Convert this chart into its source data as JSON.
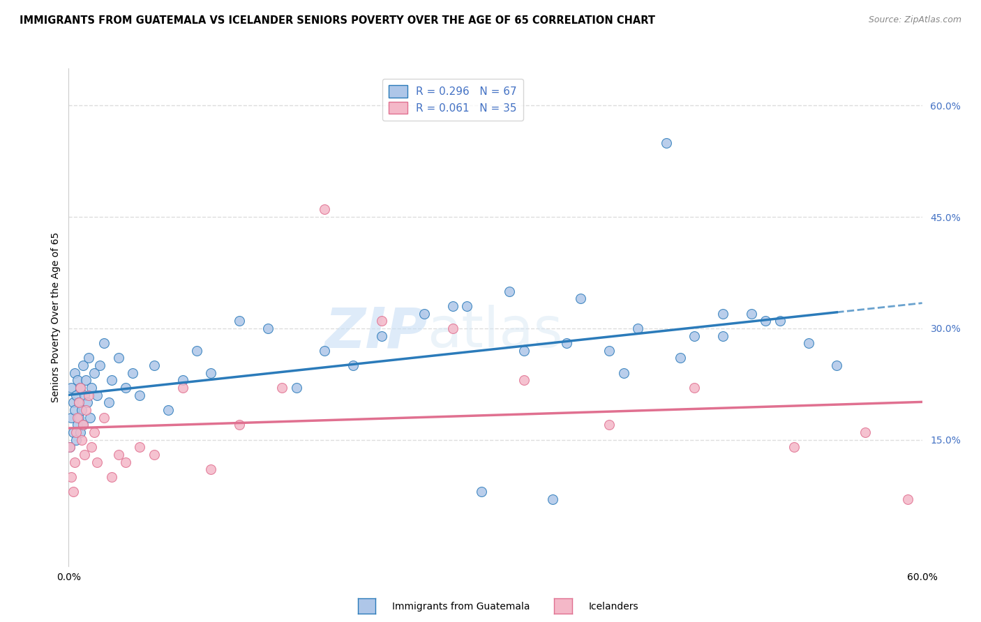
{
  "title": "IMMIGRANTS FROM GUATEMALA VS ICELANDER SENIORS POVERTY OVER THE AGE OF 65 CORRELATION CHART",
  "source": "Source: ZipAtlas.com",
  "ylabel": "Seniors Poverty Over the Age of 65",
  "right_yticks": [
    "60.0%",
    "45.0%",
    "30.0%",
    "15.0%"
  ],
  "right_ytick_vals": [
    0.6,
    0.45,
    0.3,
    0.15
  ],
  "xlim": [
    0.0,
    0.6
  ],
  "ylim": [
    -0.02,
    0.65
  ],
  "legend_entries": [
    {
      "label": "Immigrants from Guatemala",
      "R": "0.296",
      "N": "67",
      "color": "#aec6e8",
      "line_color": "#2b7bba"
    },
    {
      "label": "Icelanders",
      "R": "0.061",
      "N": "35",
      "color": "#f4b8c8",
      "line_color": "#e07090"
    }
  ],
  "guatemala_x": [
    0.001,
    0.002,
    0.002,
    0.003,
    0.003,
    0.004,
    0.004,
    0.005,
    0.005,
    0.006,
    0.006,
    0.007,
    0.007,
    0.008,
    0.008,
    0.009,
    0.01,
    0.01,
    0.011,
    0.012,
    0.013,
    0.014,
    0.015,
    0.016,
    0.018,
    0.02,
    0.022,
    0.025,
    0.028,
    0.03,
    0.035,
    0.04,
    0.045,
    0.05,
    0.06,
    0.07,
    0.08,
    0.09,
    0.1,
    0.12,
    0.14,
    0.16,
    0.18,
    0.2,
    0.22,
    0.25,
    0.28,
    0.32,
    0.36,
    0.4,
    0.43,
    0.46,
    0.49,
    0.35,
    0.27,
    0.31,
    0.38,
    0.42,
    0.46,
    0.5,
    0.52,
    0.54,
    0.48,
    0.44,
    0.39,
    0.34,
    0.29
  ],
  "guatemala_y": [
    0.14,
    0.18,
    0.22,
    0.16,
    0.2,
    0.19,
    0.24,
    0.15,
    0.21,
    0.17,
    0.23,
    0.18,
    0.2,
    0.16,
    0.22,
    0.19,
    0.25,
    0.17,
    0.21,
    0.23,
    0.2,
    0.26,
    0.18,
    0.22,
    0.24,
    0.21,
    0.25,
    0.28,
    0.2,
    0.23,
    0.26,
    0.22,
    0.24,
    0.21,
    0.25,
    0.19,
    0.23,
    0.27,
    0.24,
    0.31,
    0.3,
    0.22,
    0.27,
    0.25,
    0.29,
    0.32,
    0.33,
    0.27,
    0.34,
    0.3,
    0.26,
    0.32,
    0.31,
    0.28,
    0.33,
    0.35,
    0.27,
    0.55,
    0.29,
    0.31,
    0.28,
    0.25,
    0.32,
    0.29,
    0.24,
    0.07,
    0.08
  ],
  "iceland_x": [
    0.001,
    0.002,
    0.003,
    0.004,
    0.005,
    0.006,
    0.007,
    0.008,
    0.009,
    0.01,
    0.011,
    0.012,
    0.014,
    0.016,
    0.018,
    0.02,
    0.025,
    0.03,
    0.04,
    0.05,
    0.06,
    0.08,
    0.1,
    0.12,
    0.15,
    0.18,
    0.22,
    0.27,
    0.32,
    0.38,
    0.44,
    0.51,
    0.56,
    0.59,
    0.035
  ],
  "iceland_y": [
    0.14,
    0.1,
    0.08,
    0.12,
    0.16,
    0.18,
    0.2,
    0.22,
    0.15,
    0.17,
    0.13,
    0.19,
    0.21,
    0.14,
    0.16,
    0.12,
    0.18,
    0.1,
    0.12,
    0.14,
    0.13,
    0.22,
    0.11,
    0.17,
    0.22,
    0.46,
    0.31,
    0.3,
    0.23,
    0.17,
    0.22,
    0.14,
    0.16,
    0.07,
    0.13
  ],
  "watermark_zip": "ZIP",
  "watermark_atlas": "atlas",
  "background_color": "#ffffff",
  "grid_color": "#dddddd",
  "title_fontsize": 10.5,
  "axis_label_fontsize": 10,
  "tick_fontsize": 10,
  "legend_fontsize": 11,
  "scatter_size": 100
}
